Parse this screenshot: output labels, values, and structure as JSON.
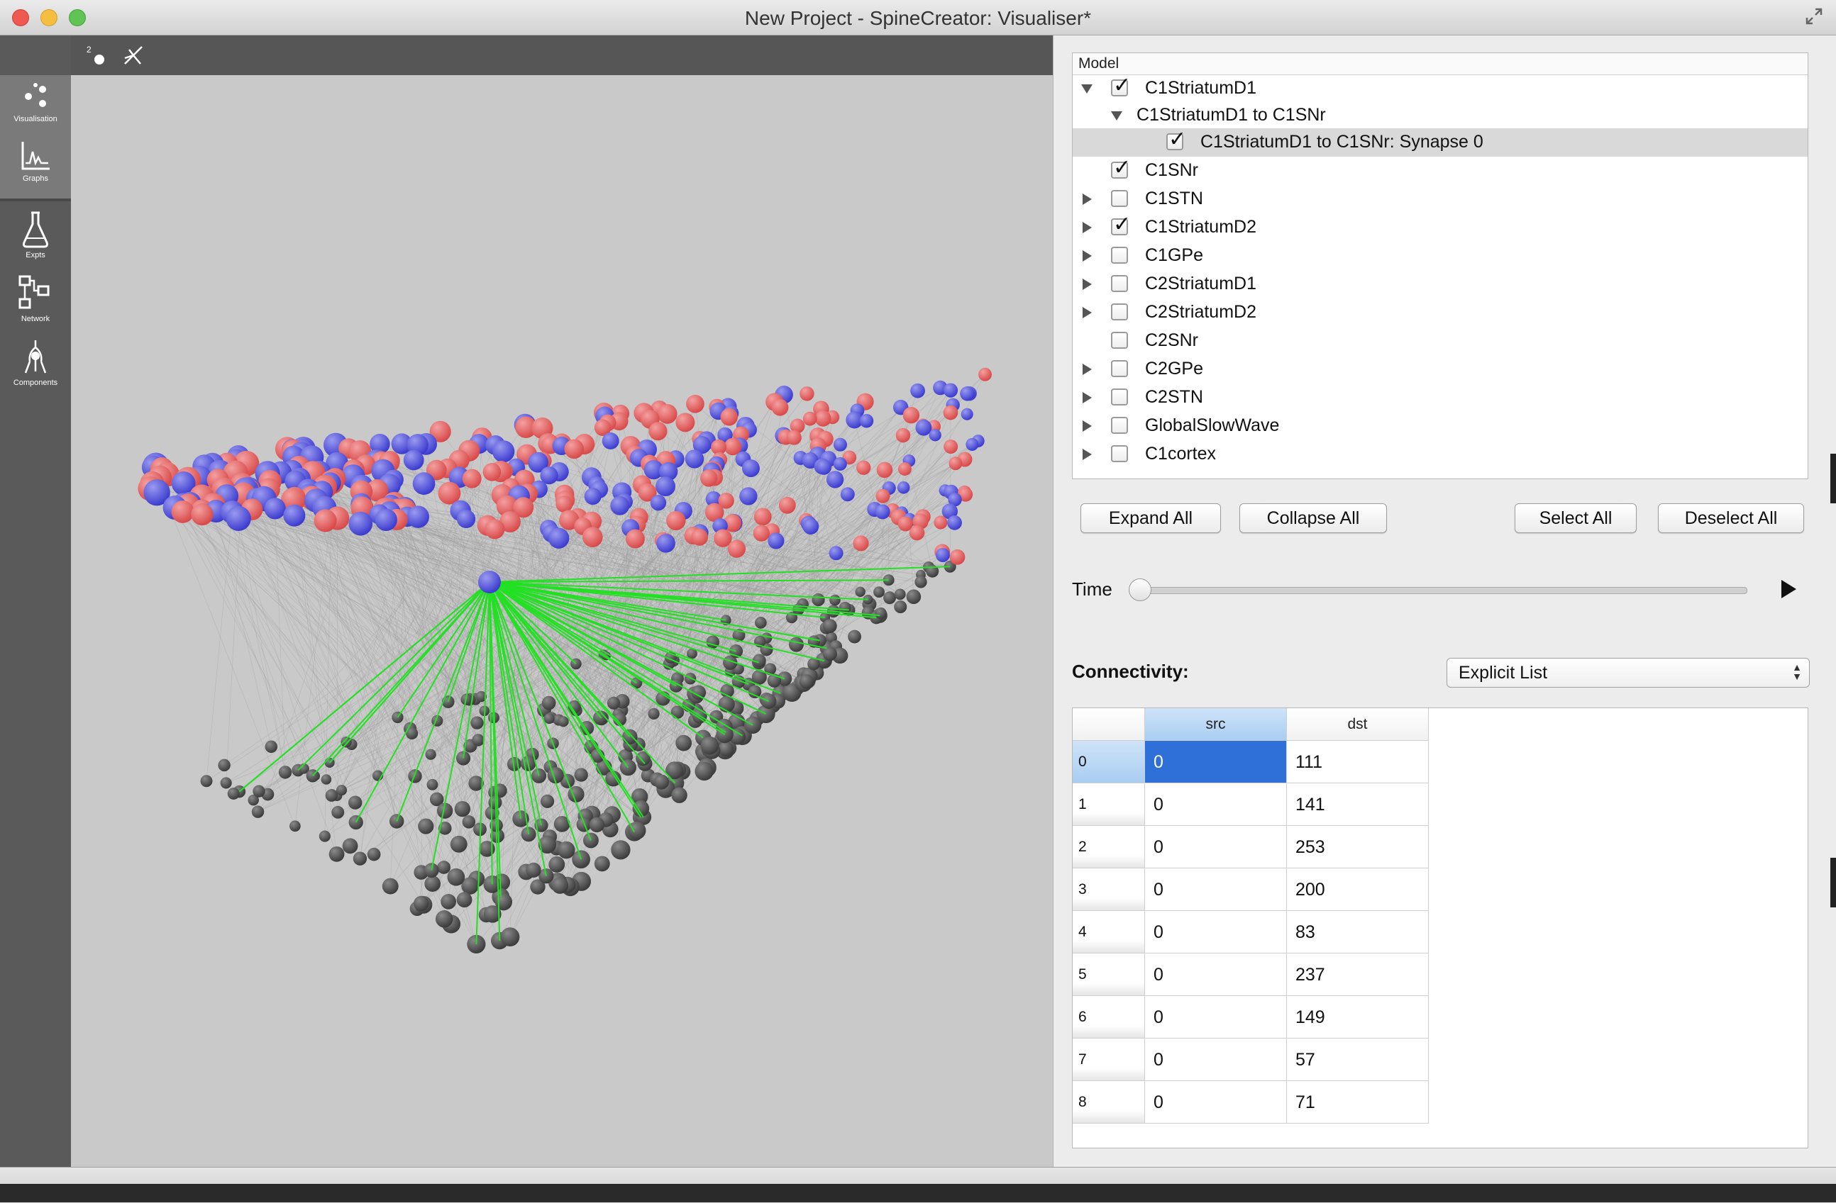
{
  "window": {
    "title": "New Project - SpineCreator: Visualiser*"
  },
  "sidebar": {
    "items": [
      {
        "label": "Visualisation",
        "icon": "visualisation-icon"
      },
      {
        "label": "Graphs",
        "icon": "graphs-icon"
      },
      {
        "label": "Expts",
        "icon": "flask-icon"
      },
      {
        "label": "Network",
        "icon": "network-icon"
      },
      {
        "label": "Components",
        "icon": "components-icon"
      }
    ]
  },
  "gl_toolbar": {
    "icons": [
      "2d-view-icon",
      "reset-axes-icon"
    ]
  },
  "model_tree": {
    "header": "Model",
    "items": [
      {
        "label": "C1StriatumD1",
        "expanded": true,
        "checked": true
      },
      {
        "label": "C1StriatumD1 to C1SNr",
        "expanded": true
      },
      {
        "label": "C1StriatumD1 to C1SNr: Synapse 0",
        "checked": true,
        "selected": true
      },
      {
        "label": "C1SNr",
        "checked": true
      },
      {
        "label": "C1STN",
        "checked": false
      },
      {
        "label": "C1StriatumD2",
        "checked": true
      },
      {
        "label": "C1GPe",
        "checked": false
      },
      {
        "label": "C2StriatumD1",
        "checked": false
      },
      {
        "label": "C2StriatumD2",
        "checked": false
      },
      {
        "label": "C2SNr",
        "checked": false
      },
      {
        "label": "C2GPe",
        "checked": false
      },
      {
        "label": "C2STN",
        "checked": false
      },
      {
        "label": "GlobalSlowWave",
        "checked": false
      },
      {
        "label": "C1cortex",
        "checked": false
      }
    ]
  },
  "buttons": {
    "expand_all": "Expand All",
    "collapse_all": "Collapse All",
    "select_all": "Select All",
    "deselect_all": "Deselect All"
  },
  "time": {
    "label": "Time",
    "value": 0
  },
  "connectivity": {
    "label": "Connectivity:",
    "selected": "Explicit List",
    "columns": [
      "src",
      "dst"
    ],
    "rows": [
      {
        "index": "0",
        "src": "0",
        "dst": "111"
      },
      {
        "index": "1",
        "src": "0",
        "dst": "141"
      },
      {
        "index": "2",
        "src": "0",
        "dst": "253"
      },
      {
        "index": "3",
        "src": "0",
        "dst": "200"
      },
      {
        "index": "4",
        "src": "0",
        "dst": "83"
      },
      {
        "index": "5",
        "src": "0",
        "dst": "237"
      },
      {
        "index": "6",
        "src": "0",
        "dst": "149"
      },
      {
        "index": "7",
        "src": "0",
        "dst": "57"
      },
      {
        "index": "8",
        "src": "0",
        "dst": "71"
      }
    ]
  },
  "colors": {
    "population_a": "#d84a4a",
    "population_b": "#3c3ccf",
    "population_c": "#3c3c3c",
    "connections": "#22e022",
    "selection": "#2f6fd8"
  }
}
